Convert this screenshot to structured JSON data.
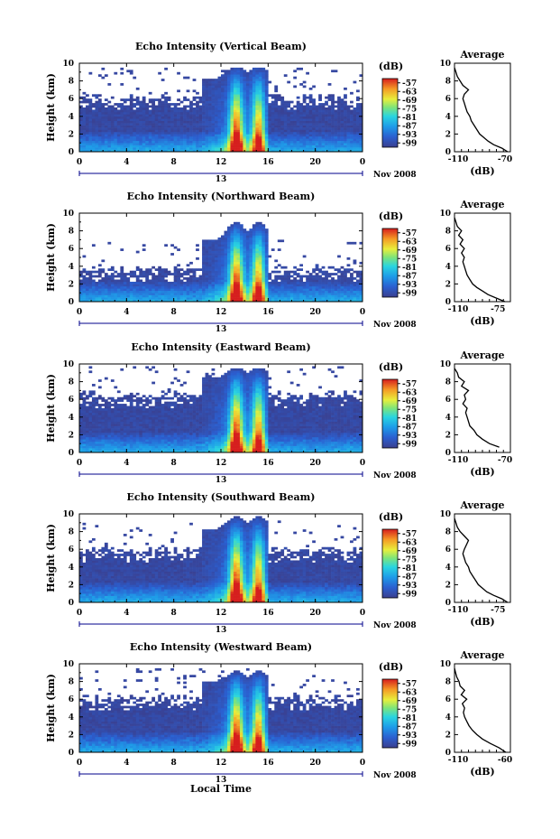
{
  "chart_data": [
    {
      "type": "heatmap",
      "title": "Echo Intensity (Vertical Beam)",
      "xlabel": "",
      "ylabel": "Height (km)",
      "xlim": [
        0,
        24
      ],
      "ylim": [
        0,
        10
      ],
      "xticks": [
        "0",
        "4",
        "8",
        "12",
        "16",
        "20",
        "0"
      ],
      "yticks": [
        "0",
        "2",
        "4",
        "6",
        "8",
        "10"
      ],
      "day_label": "13",
      "month_label": "Nov 2008",
      "colorbar": {
        "label": "(dB)",
        "ticks": [
          "-57",
          "-63",
          "-69",
          "-75",
          "-81",
          "-87",
          "-93",
          "-99"
        ],
        "range": [
          -102,
          -54
        ]
      },
      "cloud_top_km": 6.2,
      "convection": {
        "start_h": 10.5,
        "end_h": 16.0,
        "top_km": 9.6,
        "cores": [
          13.3,
          15.2
        ]
      },
      "profile": {
        "title": "Average",
        "xlabel": "(dB)",
        "xticks": [
          "-110",
          "-70"
        ],
        "xlim": [
          -110,
          -70
        ],
        "ylim": [
          0,
          10
        ],
        "points": [
          [
            -72,
            0
          ],
          [
            -76,
            0.4
          ],
          [
            -82,
            0.8
          ],
          [
            -86,
            1.2
          ],
          [
            -89,
            1.6
          ],
          [
            -92,
            2.0
          ],
          [
            -94,
            2.5
          ],
          [
            -96,
            3.0
          ],
          [
            -98,
            3.5
          ],
          [
            -99,
            4.0
          ],
          [
            -101,
            4.5
          ],
          [
            -102,
            5.0
          ],
          [
            -103,
            5.5
          ],
          [
            -104,
            6.0
          ],
          [
            -103,
            6.5
          ],
          [
            -100,
            7.0
          ],
          [
            -104,
            7.5
          ],
          [
            -106,
            8.0
          ],
          [
            -108,
            8.5
          ],
          [
            -109,
            9.0
          ],
          [
            -110,
            9.5
          ]
        ]
      }
    },
    {
      "type": "heatmap",
      "title": "Echo Intensity (Northward Beam)",
      "xlabel": "",
      "ylabel": "Height (km)",
      "xlim": [
        0,
        24
      ],
      "ylim": [
        0,
        10
      ],
      "xticks": [
        "0",
        "4",
        "8",
        "12",
        "16",
        "20",
        "0"
      ],
      "yticks": [
        "0",
        "2",
        "4",
        "6",
        "8",
        "10"
      ],
      "day_label": "13",
      "month_label": "Nov 2008",
      "colorbar": {
        "label": "(dB)",
        "ticks": [
          "-57",
          "-63",
          "-69",
          "-75",
          "-81",
          "-87",
          "-93",
          "-99"
        ],
        "range": [
          -102,
          -54
        ]
      },
      "cloud_top_km": 3.8,
      "convection": {
        "start_h": 10.5,
        "end_h": 16.0,
        "top_km": 9.0,
        "cores": [
          13.3,
          15.2
        ]
      },
      "profile": {
        "title": "Average",
        "xlabel": "(dB)",
        "xticks": [
          "-110",
          "-75"
        ],
        "xlim": [
          -110,
          -70
        ],
        "ylim": [
          0,
          10
        ],
        "points": [
          [
            -74,
            0
          ],
          [
            -80,
            0.4
          ],
          [
            -86,
            0.8
          ],
          [
            -90,
            1.2
          ],
          [
            -94,
            1.6
          ],
          [
            -97,
            2.0
          ],
          [
            -99,
            2.5
          ],
          [
            -101,
            3.0
          ],
          [
            -102,
            3.5
          ],
          [
            -103,
            4.0
          ],
          [
            -104,
            4.5
          ],
          [
            -103,
            5.0
          ],
          [
            -105,
            5.5
          ],
          [
            -103,
            6.0
          ],
          [
            -106,
            6.5
          ],
          [
            -104,
            7.0
          ],
          [
            -107,
            7.5
          ],
          [
            -105,
            8.0
          ],
          [
            -108,
            8.5
          ],
          [
            -109,
            9.0
          ],
          [
            -110,
            9.5
          ]
        ]
      }
    },
    {
      "type": "heatmap",
      "title": "Echo Intensity (Eastward Beam)",
      "xlabel": "",
      "ylabel": "Height (km)",
      "xlim": [
        0,
        24
      ],
      "ylim": [
        0,
        10
      ],
      "xticks": [
        "0",
        "4",
        "8",
        "12",
        "16",
        "20",
        "0"
      ],
      "yticks": [
        "0",
        "2",
        "4",
        "6",
        "8",
        "10"
      ],
      "day_label": "13",
      "month_label": "Nov 2008",
      "colorbar": {
        "label": "(dB)",
        "ticks": [
          "-57",
          "-63",
          "-69",
          "-75",
          "-81",
          "-87",
          "-93",
          "-99"
        ],
        "range": [
          -102,
          -54
        ]
      },
      "cloud_top_km": 6.6,
      "convection": {
        "start_h": 10.5,
        "end_h": 16.0,
        "top_km": 9.6,
        "cores": [
          13.3,
          15.2
        ]
      },
      "profile": {
        "title": "Average",
        "xlabel": "(dB)",
        "xticks": [
          "-110",
          "-70"
        ],
        "xlim": [
          -110,
          -70
        ],
        "ylim": [
          0,
          10
        ],
        "points": [
          [
            -78,
            0.6
          ],
          [
            -85,
            1.0
          ],
          [
            -90,
            1.5
          ],
          [
            -94,
            2.0
          ],
          [
            -96,
            2.5
          ],
          [
            -99,
            3.0
          ],
          [
            -100,
            3.5
          ],
          [
            -101,
            4.0
          ],
          [
            -102,
            4.5
          ],
          [
            -101,
            5.0
          ],
          [
            -104,
            5.5
          ],
          [
            -102,
            6.0
          ],
          [
            -103,
            6.5
          ],
          [
            -100,
            7.0
          ],
          [
            -105,
            7.5
          ],
          [
            -103,
            8.0
          ],
          [
            -107,
            8.5
          ],
          [
            -108,
            9.0
          ],
          [
            -110,
            9.5
          ]
        ]
      }
    },
    {
      "type": "heatmap",
      "title": "Echo Intensity (Southward Beam)",
      "xlabel": "",
      "ylabel": "Height (km)",
      "xlim": [
        0,
        24
      ],
      "ylim": [
        0,
        10
      ],
      "xticks": [
        "0",
        "4",
        "8",
        "12",
        "16",
        "20",
        "0"
      ],
      "yticks": [
        "0",
        "2",
        "4",
        "6",
        "8",
        "10"
      ],
      "day_label": "13",
      "month_label": "Nov 2008",
      "colorbar": {
        "label": "(dB)",
        "ticks": [
          "-57",
          "-63",
          "-69",
          "-75",
          "-81",
          "-87",
          "-93",
          "-99"
        ],
        "range": [
          -102,
          -54
        ]
      },
      "cloud_top_km": 6.0,
      "convection": {
        "start_h": 10.5,
        "end_h": 16.0,
        "top_km": 9.7,
        "cores": [
          13.3,
          15.2
        ]
      },
      "profile": {
        "title": "Average",
        "xlabel": "(dB)",
        "xticks": [
          "-110",
          "-75"
        ],
        "xlim": [
          -110,
          -70
        ],
        "ylim": [
          0,
          10
        ],
        "points": [
          [
            -72,
            0
          ],
          [
            -76,
            0.4
          ],
          [
            -82,
            0.8
          ],
          [
            -87,
            1.2
          ],
          [
            -90,
            1.6
          ],
          [
            -93,
            2.0
          ],
          [
            -95,
            2.5
          ],
          [
            -97,
            3.0
          ],
          [
            -99,
            3.5
          ],
          [
            -100,
            4.0
          ],
          [
            -102,
            4.5
          ],
          [
            -103,
            5.0
          ],
          [
            -104,
            5.5
          ],
          [
            -103,
            6.0
          ],
          [
            -100,
            7.0
          ],
          [
            -103,
            7.5
          ],
          [
            -106,
            8.0
          ],
          [
            -108,
            8.5
          ],
          [
            -109,
            9.0
          ],
          [
            -110,
            9.5
          ]
        ]
      }
    },
    {
      "type": "heatmap",
      "title": "Echo Intensity (Westward Beam)",
      "xlabel": "Local Time",
      "ylabel": "Height (km)",
      "xlim": [
        0,
        24
      ],
      "ylim": [
        0,
        10
      ],
      "xticks": [
        "0",
        "4",
        "8",
        "12",
        "16",
        "20",
        "0"
      ],
      "yticks": [
        "0",
        "2",
        "4",
        "6",
        "8",
        "10"
      ],
      "day_label": "13",
      "month_label": "Nov 2008",
      "colorbar": {
        "label": "(dB)",
        "ticks": [
          "-57",
          "-63",
          "-69",
          "-75",
          "-81",
          "-87",
          "-93",
          "-99"
        ],
        "range": [
          -102,
          -54
        ]
      },
      "cloud_top_km": 6.2,
      "convection": {
        "start_h": 10.5,
        "end_h": 16.0,
        "top_km": 9.2,
        "cores": [
          13.3,
          15.2
        ]
      },
      "profile": {
        "title": "Average",
        "xlabel": "(dB)",
        "xticks": [
          "-110",
          "-60"
        ],
        "xlim": [
          -110,
          -60
        ],
        "ylim": [
          0,
          10
        ],
        "points": [
          [
            -64,
            0
          ],
          [
            -70,
            0.5
          ],
          [
            -78,
            1.0
          ],
          [
            -85,
            1.5
          ],
          [
            -90,
            2.0
          ],
          [
            -94,
            2.5
          ],
          [
            -97,
            3.0
          ],
          [
            -99,
            3.5
          ],
          [
            -101,
            4.0
          ],
          [
            -102,
            4.5
          ],
          [
            -101,
            5.0
          ],
          [
            -103,
            5.5
          ],
          [
            -99,
            6.0
          ],
          [
            -104,
            6.5
          ],
          [
            -101,
            7.0
          ],
          [
            -105,
            7.5
          ],
          [
            -106,
            8.0
          ],
          [
            -108,
            8.5
          ],
          [
            -109,
            9.0
          ],
          [
            -110,
            9.5
          ]
        ]
      }
    }
  ]
}
